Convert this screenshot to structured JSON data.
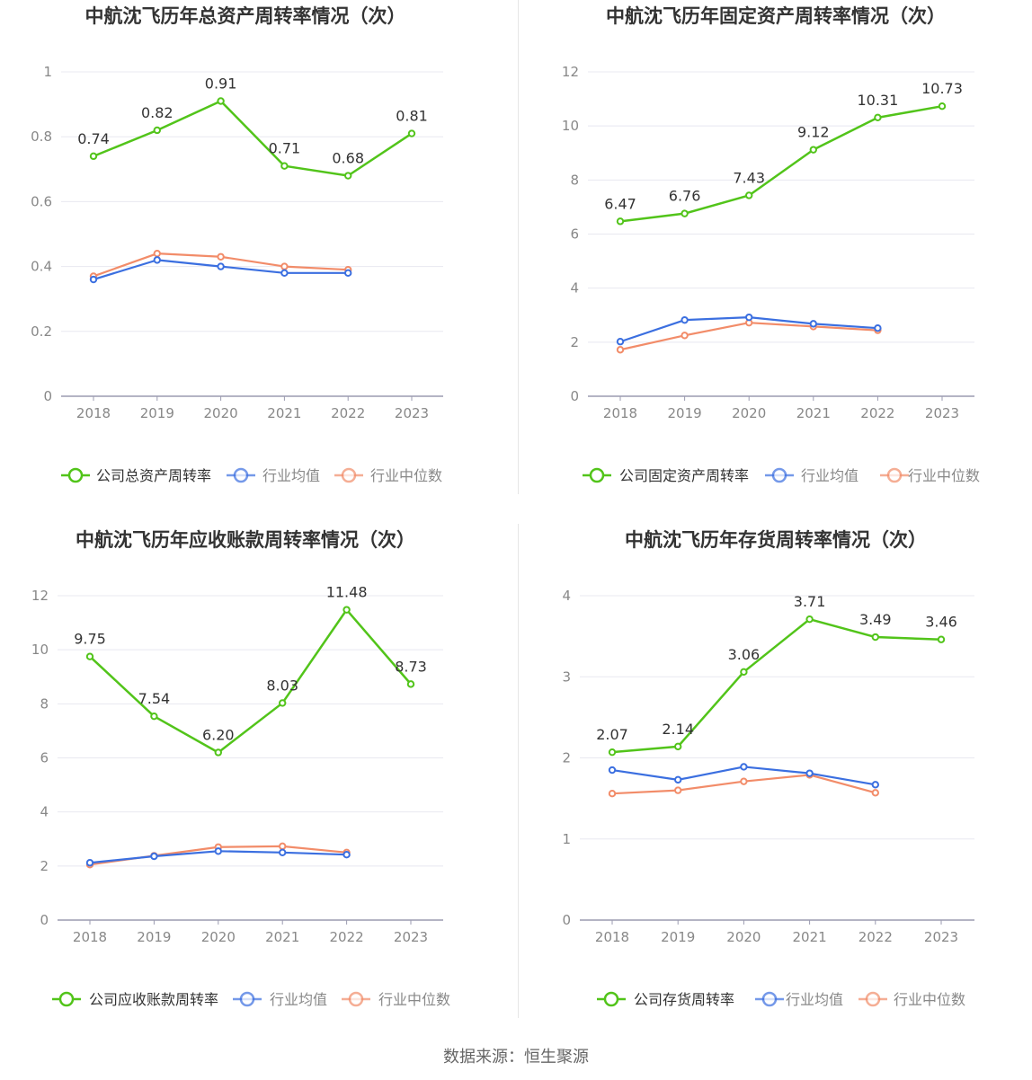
{
  "colors": {
    "company": "#52c41a",
    "avg": "#3b6fe0",
    "median": "#f28c69",
    "axis": "#9b9bb0",
    "grid": "#e8e8f0",
    "tick_text": "#888888",
    "label_text": "#333333"
  },
  "source": "数据来源：恒生聚源",
  "chart_data": [
    {
      "type": "line",
      "title": "中航沈飞历年总资产周转率情况（次）",
      "categories": [
        "2018",
        "2019",
        "2020",
        "2021",
        "2022",
        "2023"
      ],
      "yticks": [
        "0",
        "0.2",
        "0.4",
        "0.6",
        "0.8",
        "1"
      ],
      "ylim": [
        0,
        1
      ],
      "legend_position": "bottom",
      "series": [
        {
          "name": "公司总资产周转率",
          "role": "company",
          "values": [
            0.74,
            0.82,
            0.91,
            0.71,
            0.68,
            0.81
          ],
          "labels": [
            "0.74",
            "0.82",
            "0.91",
            "0.71",
            "0.68",
            "0.81"
          ]
        },
        {
          "name": "行业均值",
          "role": "avg",
          "values": [
            0.36,
            0.42,
            0.4,
            0.38,
            0.38,
            null
          ]
        },
        {
          "name": "行业中位数",
          "role": "median",
          "values": [
            0.37,
            0.44,
            0.43,
            0.4,
            0.39,
            null
          ]
        }
      ]
    },
    {
      "type": "line",
      "title": "中航沈飞历年固定资产周转率情况（次）",
      "categories": [
        "2018",
        "2019",
        "2020",
        "2021",
        "2022",
        "2023"
      ],
      "yticks": [
        "0",
        "2",
        "4",
        "6",
        "8",
        "10",
        "12"
      ],
      "ylim": [
        0,
        12
      ],
      "legend_position": "bottom",
      "series": [
        {
          "name": "公司固定资产周转率",
          "role": "company",
          "values": [
            6.47,
            6.76,
            7.43,
            9.12,
            10.31,
            10.73
          ],
          "labels": [
            "6.47",
            "6.76",
            "7.43",
            "9.12",
            "10.31",
            "10.73"
          ]
        },
        {
          "name": "行业均值",
          "role": "avg",
          "values": [
            2.02,
            2.82,
            2.92,
            2.68,
            2.52,
            null
          ]
        },
        {
          "name": "行业中位数",
          "role": "median",
          "values": [
            1.72,
            2.25,
            2.72,
            2.58,
            2.44,
            null
          ]
        }
      ]
    },
    {
      "type": "line",
      "title": "中航沈飞历年应收账款周转率情况（次）",
      "categories": [
        "2018",
        "2019",
        "2020",
        "2021",
        "2022",
        "2023"
      ],
      "yticks": [
        "0",
        "2",
        "4",
        "6",
        "8",
        "10",
        "12"
      ],
      "ylim": [
        0,
        12
      ],
      "legend_position": "bottom",
      "series": [
        {
          "name": "公司应收账款周转率",
          "role": "company",
          "values": [
            9.75,
            7.54,
            6.2,
            8.03,
            11.48,
            8.73
          ],
          "labels": [
            "9.75",
            "7.54",
            "6.20",
            "8.03",
            "11.48",
            "8.73"
          ]
        },
        {
          "name": "行业均值",
          "role": "avg",
          "values": [
            2.12,
            2.36,
            2.55,
            2.5,
            2.42,
            null
          ]
        },
        {
          "name": "行业中位数",
          "role": "median",
          "values": [
            2.05,
            2.38,
            2.7,
            2.73,
            2.5,
            null
          ]
        }
      ]
    },
    {
      "type": "line",
      "title": "中航沈飞历年存货周转率情况（次）",
      "categories": [
        "2018",
        "2019",
        "2020",
        "2021",
        "2022",
        "2023"
      ],
      "yticks": [
        "0",
        "1",
        "2",
        "3",
        "4"
      ],
      "ylim": [
        0,
        4
      ],
      "legend_position": "bottom",
      "series": [
        {
          "name": "公司存货周转率",
          "role": "company",
          "values": [
            2.07,
            2.14,
            3.06,
            3.71,
            3.49,
            3.46
          ],
          "labels": [
            "2.07",
            "2.14",
            "3.06",
            "3.71",
            "3.49",
            "3.46"
          ]
        },
        {
          "name": "行业均值",
          "role": "avg",
          "values": [
            1.85,
            1.73,
            1.89,
            1.81,
            1.67,
            null
          ]
        },
        {
          "name": "行业中位数",
          "role": "median",
          "values": [
            1.56,
            1.6,
            1.71,
            1.79,
            1.57,
            null
          ]
        }
      ]
    }
  ]
}
